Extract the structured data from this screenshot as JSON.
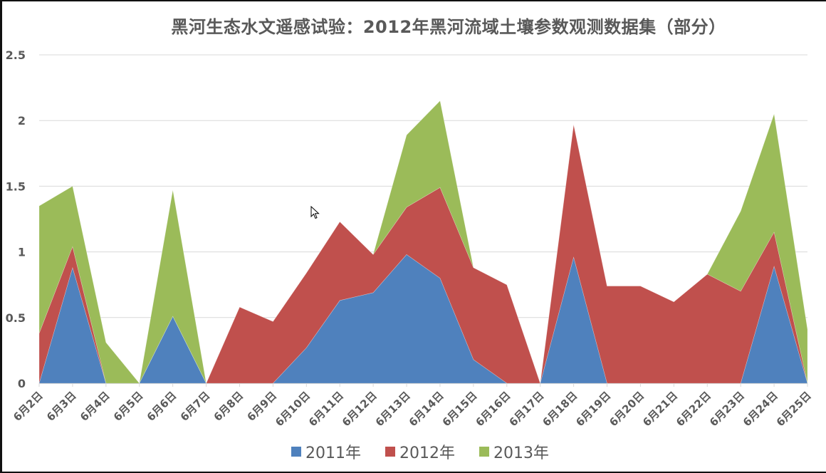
{
  "chart": {
    "title": "黑河生态水文遥感试验：2012年黑河流域土壤参数观测数据集（部分）"
  },
  "legend": [
    {
      "label": "2011年",
      "color": "#4F81BD"
    },
    {
      "label": "2012年",
      "color": "#C0504D"
    },
    {
      "label": "2013年",
      "color": "#9BBB59"
    }
  ],
  "chart_data": {
    "type": "area",
    "stacked": true,
    "title": "黑河生态水文遥感试验：2012年黑河流域土壤参数观测数据集（部分）",
    "xlabel": "",
    "ylabel": "",
    "ylim": [
      0,
      2.5
    ],
    "yticks": [
      "0",
      "0.5",
      "1",
      "1.5",
      "2",
      "2.5"
    ],
    "grid": true,
    "legend_position": "bottom",
    "categories": [
      "6月2日",
      "6月3日",
      "6月4日",
      "6月5日",
      "6月6日",
      "6月7日",
      "6月8日",
      "6月9日",
      "6月10日",
      "6月11日",
      "6月12日",
      "6月13日",
      "6月14日",
      "6月15日",
      "6月16日",
      "6月17日",
      "6月18日",
      "6月19日",
      "6月20日",
      "6月21日",
      "6月22日",
      "6月23日",
      "6月24日",
      "6月25日"
    ],
    "series": [
      {
        "name": "2011年",
        "color": "#4F81BD",
        "values": [
          0,
          0.88,
          0,
          0,
          0.51,
          0,
          0,
          0,
          0.27,
          0.63,
          0.69,
          0.98,
          0.8,
          0.18,
          0,
          0,
          0.96,
          0,
          0,
          0,
          0,
          0,
          0.89,
          0
        ]
      },
      {
        "name": "2012年",
        "color": "#C0504D",
        "values": [
          0.38,
          0.16,
          0,
          0,
          0,
          0,
          0.58,
          0.47,
          0.57,
          0.6,
          0.29,
          0.36,
          0.69,
          0.7,
          0.75,
          0,
          1.01,
          0.74,
          0.74,
          0.62,
          0.83,
          0.7,
          0.26,
          0
        ]
      },
      {
        "name": "2013年",
        "color": "#9BBB59",
        "values": [
          0.97,
          0.46,
          0.31,
          0,
          0.96,
          0,
          0,
          0,
          0,
          0,
          0,
          0.55,
          0.66,
          0,
          0,
          0,
          0,
          0,
          0,
          0,
          0,
          0.61,
          0.9,
          0.41
        ]
      }
    ]
  }
}
